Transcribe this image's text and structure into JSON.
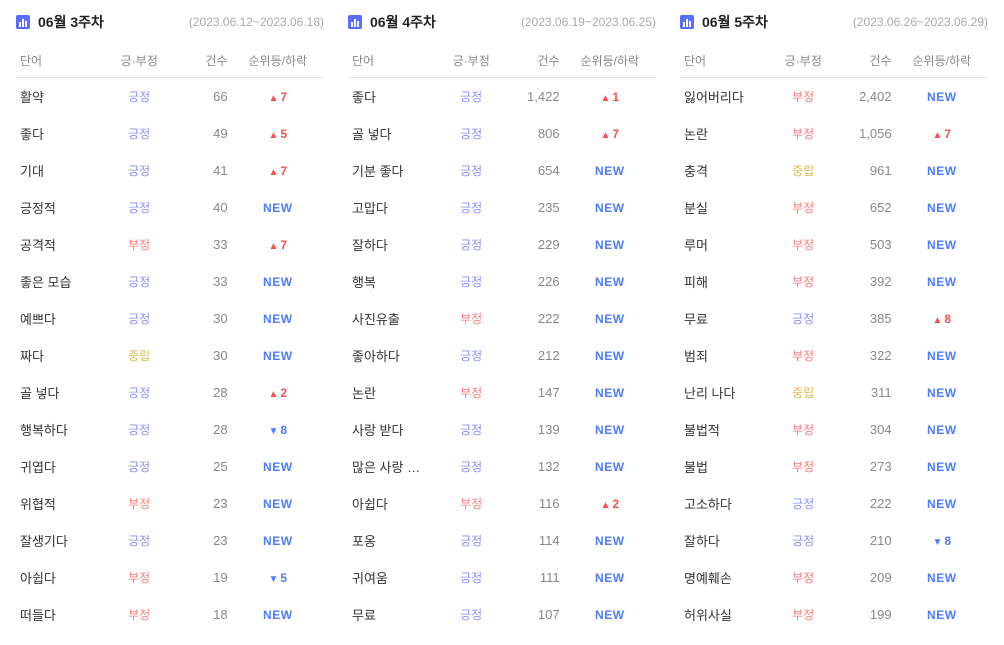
{
  "colors": {
    "icon_bg": "#5b6dff",
    "date_text": "#aaaaaa",
    "header_text": "#888888",
    "word_text": "#333333",
    "count_text": "#888888",
    "sent_positive": "#8a8eff",
    "sent_negative": "#ff7a7a",
    "sent_neutral": "#e0b84d",
    "rank_up": "#ff4d4d",
    "rank_down": "#4d7dff",
    "rank_new": "#4d7dff",
    "border": "#e5e5e5"
  },
  "sentiment_labels": {
    "positive": "긍정",
    "negative": "부정",
    "neutral": "중립"
  },
  "rank_labels": {
    "new": "NEW",
    "up_symbol": "▲",
    "down_symbol": "▼"
  },
  "columns": {
    "word": "단어",
    "sentiment": "긍·부정",
    "count": "건수",
    "rank": "순위등/하락"
  },
  "panels": [
    {
      "title": "06월 3주차",
      "date_range": "(2023.06.12~2023.06.18)",
      "rows": [
        {
          "word": "활약",
          "sentiment": "positive",
          "count": "66",
          "rank": {
            "type": "up",
            "value": 7
          }
        },
        {
          "word": "좋다",
          "sentiment": "positive",
          "count": "49",
          "rank": {
            "type": "up",
            "value": 5
          }
        },
        {
          "word": "기대",
          "sentiment": "positive",
          "count": "41",
          "rank": {
            "type": "up",
            "value": 7
          }
        },
        {
          "word": "긍정적",
          "sentiment": "positive",
          "count": "40",
          "rank": {
            "type": "new"
          }
        },
        {
          "word": "공격적",
          "sentiment": "negative",
          "count": "33",
          "rank": {
            "type": "up",
            "value": 7
          }
        },
        {
          "word": "좋은 모습",
          "sentiment": "positive",
          "count": "33",
          "rank": {
            "type": "new"
          }
        },
        {
          "word": "예쁘다",
          "sentiment": "positive",
          "count": "30",
          "rank": {
            "type": "new"
          }
        },
        {
          "word": "짜다",
          "sentiment": "neutral",
          "count": "30",
          "rank": {
            "type": "new"
          }
        },
        {
          "word": "골 넣다",
          "sentiment": "positive",
          "count": "28",
          "rank": {
            "type": "up",
            "value": 2
          }
        },
        {
          "word": "행복하다",
          "sentiment": "positive",
          "count": "28",
          "rank": {
            "type": "down",
            "value": 8
          }
        },
        {
          "word": "귀엽다",
          "sentiment": "positive",
          "count": "25",
          "rank": {
            "type": "new"
          }
        },
        {
          "word": "위협적",
          "sentiment": "negative",
          "count": "23",
          "rank": {
            "type": "new"
          }
        },
        {
          "word": "잘생기다",
          "sentiment": "positive",
          "count": "23",
          "rank": {
            "type": "new"
          }
        },
        {
          "word": "아쉽다",
          "sentiment": "negative",
          "count": "19",
          "rank": {
            "type": "down",
            "value": 5
          }
        },
        {
          "word": "떠들다",
          "sentiment": "negative",
          "count": "18",
          "rank": {
            "type": "new"
          }
        }
      ]
    },
    {
      "title": "06월 4주차",
      "date_range": "(2023.06.19~2023.06.25)",
      "rows": [
        {
          "word": "좋다",
          "sentiment": "positive",
          "count": "1,422",
          "rank": {
            "type": "up",
            "value": 1
          }
        },
        {
          "word": "골 넣다",
          "sentiment": "positive",
          "count": "806",
          "rank": {
            "type": "up",
            "value": 7
          }
        },
        {
          "word": "기분 좋다",
          "sentiment": "positive",
          "count": "654",
          "rank": {
            "type": "new"
          }
        },
        {
          "word": "고맙다",
          "sentiment": "positive",
          "count": "235",
          "rank": {
            "type": "new"
          }
        },
        {
          "word": "잘하다",
          "sentiment": "positive",
          "count": "229",
          "rank": {
            "type": "new"
          }
        },
        {
          "word": "행복",
          "sentiment": "positive",
          "count": "226",
          "rank": {
            "type": "new"
          }
        },
        {
          "word": "사진유출",
          "sentiment": "negative",
          "count": "222",
          "rank": {
            "type": "new"
          }
        },
        {
          "word": "좋아하다",
          "sentiment": "positive",
          "count": "212",
          "rank": {
            "type": "new"
          }
        },
        {
          "word": "논란",
          "sentiment": "negative",
          "count": "147",
          "rank": {
            "type": "new"
          }
        },
        {
          "word": "사랑 받다",
          "sentiment": "positive",
          "count": "139",
          "rank": {
            "type": "new"
          }
        },
        {
          "word": "많은 사랑 …",
          "sentiment": "positive",
          "count": "132",
          "rank": {
            "type": "new"
          }
        },
        {
          "word": "아쉽다",
          "sentiment": "negative",
          "count": "116",
          "rank": {
            "type": "up",
            "value": 2
          }
        },
        {
          "word": "포옹",
          "sentiment": "positive",
          "count": "114",
          "rank": {
            "type": "new"
          }
        },
        {
          "word": "귀여움",
          "sentiment": "positive",
          "count": "111",
          "rank": {
            "type": "new"
          }
        },
        {
          "word": "무료",
          "sentiment": "positive",
          "count": "107",
          "rank": {
            "type": "new"
          }
        }
      ]
    },
    {
      "title": "06월 5주차",
      "date_range": "(2023.06.26~2023.06.29)",
      "rows": [
        {
          "word": "잃어버리다",
          "sentiment": "negative",
          "count": "2,402",
          "rank": {
            "type": "new"
          }
        },
        {
          "word": "논란",
          "sentiment": "negative",
          "count": "1,056",
          "rank": {
            "type": "up",
            "value": 7
          }
        },
        {
          "word": "충격",
          "sentiment": "neutral",
          "count": "961",
          "rank": {
            "type": "new"
          }
        },
        {
          "word": "분실",
          "sentiment": "negative",
          "count": "652",
          "rank": {
            "type": "new"
          }
        },
        {
          "word": "루머",
          "sentiment": "negative",
          "count": "503",
          "rank": {
            "type": "new"
          }
        },
        {
          "word": "피해",
          "sentiment": "negative",
          "count": "392",
          "rank": {
            "type": "new"
          }
        },
        {
          "word": "무료",
          "sentiment": "positive",
          "count": "385",
          "rank": {
            "type": "up",
            "value": 8
          }
        },
        {
          "word": "범죄",
          "sentiment": "negative",
          "count": "322",
          "rank": {
            "type": "new"
          }
        },
        {
          "word": "난리 나다",
          "sentiment": "neutral",
          "count": "311",
          "rank": {
            "type": "new"
          }
        },
        {
          "word": "불법적",
          "sentiment": "negative",
          "count": "304",
          "rank": {
            "type": "new"
          }
        },
        {
          "word": "불법",
          "sentiment": "negative",
          "count": "273",
          "rank": {
            "type": "new"
          }
        },
        {
          "word": "고소하다",
          "sentiment": "positive",
          "count": "222",
          "rank": {
            "type": "new"
          }
        },
        {
          "word": "잘하다",
          "sentiment": "positive",
          "count": "210",
          "rank": {
            "type": "down",
            "value": 8
          }
        },
        {
          "word": "명예훼손",
          "sentiment": "negative",
          "count": "209",
          "rank": {
            "type": "new"
          }
        },
        {
          "word": "허위사실",
          "sentiment": "negative",
          "count": "199",
          "rank": {
            "type": "new"
          }
        }
      ]
    }
  ]
}
